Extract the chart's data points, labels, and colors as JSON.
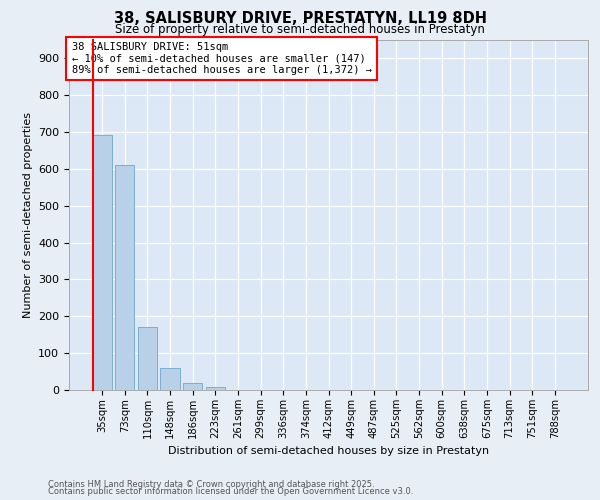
{
  "title1": "38, SALISBURY DRIVE, PRESTATYN, LL19 8DH",
  "title2": "Size of property relative to semi-detached houses in Prestatyn",
  "bar_values": [
    693,
    610,
    170,
    60,
    20,
    8,
    0,
    0,
    0,
    0,
    0,
    0,
    0,
    0,
    0,
    0,
    0,
    0,
    0,
    0,
    0
  ],
  "bar_labels": [
    "35sqm",
    "73sqm",
    "110sqm",
    "148sqm",
    "186sqm",
    "223sqm",
    "261sqm",
    "299sqm",
    "336sqm",
    "374sqm",
    "412sqm",
    "449sqm",
    "487sqm",
    "525sqm",
    "562sqm",
    "600sqm",
    "638sqm",
    "675sqm",
    "713sqm",
    "751sqm",
    "788sqm"
  ],
  "bar_color": "#b8d0e8",
  "bar_edge_color": "#7aaed0",
  "background_color": "#dce8f5",
  "grid_color": "#ffffff",
  "ylabel": "Number of semi-detached properties",
  "xlabel": "Distribution of semi-detached houses by size in Prestatyn",
  "ylim": [
    0,
    950
  ],
  "yticks": [
    0,
    100,
    200,
    300,
    400,
    500,
    600,
    700,
    800,
    900
  ],
  "annotation_title": "38 SALISBURY DRIVE: 51sqm",
  "annotation_line1": "← 10% of semi-detached houses are smaller (147)",
  "annotation_line2": "89% of semi-detached houses are larger (1,372) →",
  "footnote1": "Contains HM Land Registry data © Crown copyright and database right 2025.",
  "footnote2": "Contains public sector information licensed under the Open Government Licence v3.0."
}
